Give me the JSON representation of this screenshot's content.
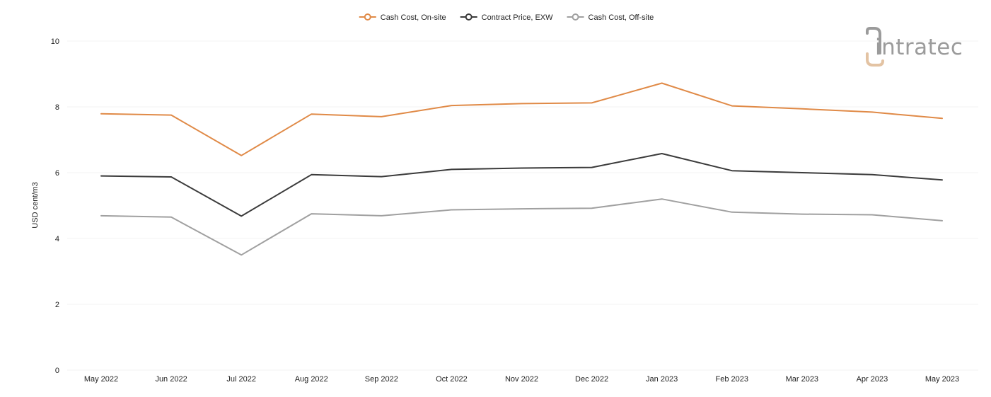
{
  "chart_data": {
    "type": "line",
    "title": "",
    "xlabel": "",
    "ylabel": "USD cent/m3",
    "ylim": [
      0,
      10
    ],
    "y_ticks": [
      0,
      2,
      4,
      6,
      8,
      10
    ],
    "grid": true,
    "legend_position": "top-center",
    "categories": [
      "May 2022",
      "Jun 2022",
      "Jul 2022",
      "Aug 2022",
      "Sep 2022",
      "Oct 2022",
      "Nov 2022",
      "Dec 2022",
      "Jan 2023",
      "Feb 2023",
      "Mar 2023",
      "Apr 2023",
      "May 2023"
    ],
    "series": [
      {
        "name": "Cash Cost, On-site",
        "color": "#e08a47",
        "values": [
          7.79,
          7.75,
          6.52,
          7.78,
          7.7,
          8.04,
          8.1,
          8.12,
          8.72,
          8.03,
          7.94,
          7.84,
          7.65
        ]
      },
      {
        "name": "Contract Price, EXW",
        "color": "#3b3b3b",
        "values": [
          5.9,
          5.87,
          4.68,
          5.94,
          5.88,
          6.1,
          6.14,
          6.16,
          6.58,
          6.06,
          6.0,
          5.94,
          5.78
        ]
      },
      {
        "name": "Cash Cost, Off-site",
        "color": "#a0a0a0",
        "values": [
          4.69,
          4.65,
          3.5,
          4.75,
          4.69,
          4.87,
          4.9,
          4.92,
          5.2,
          4.8,
          4.74,
          4.72,
          4.54
        ]
      }
    ]
  },
  "logo": {
    "text": "intratec",
    "color": "#9b9b9b",
    "accent": "#e3c3a3"
  }
}
